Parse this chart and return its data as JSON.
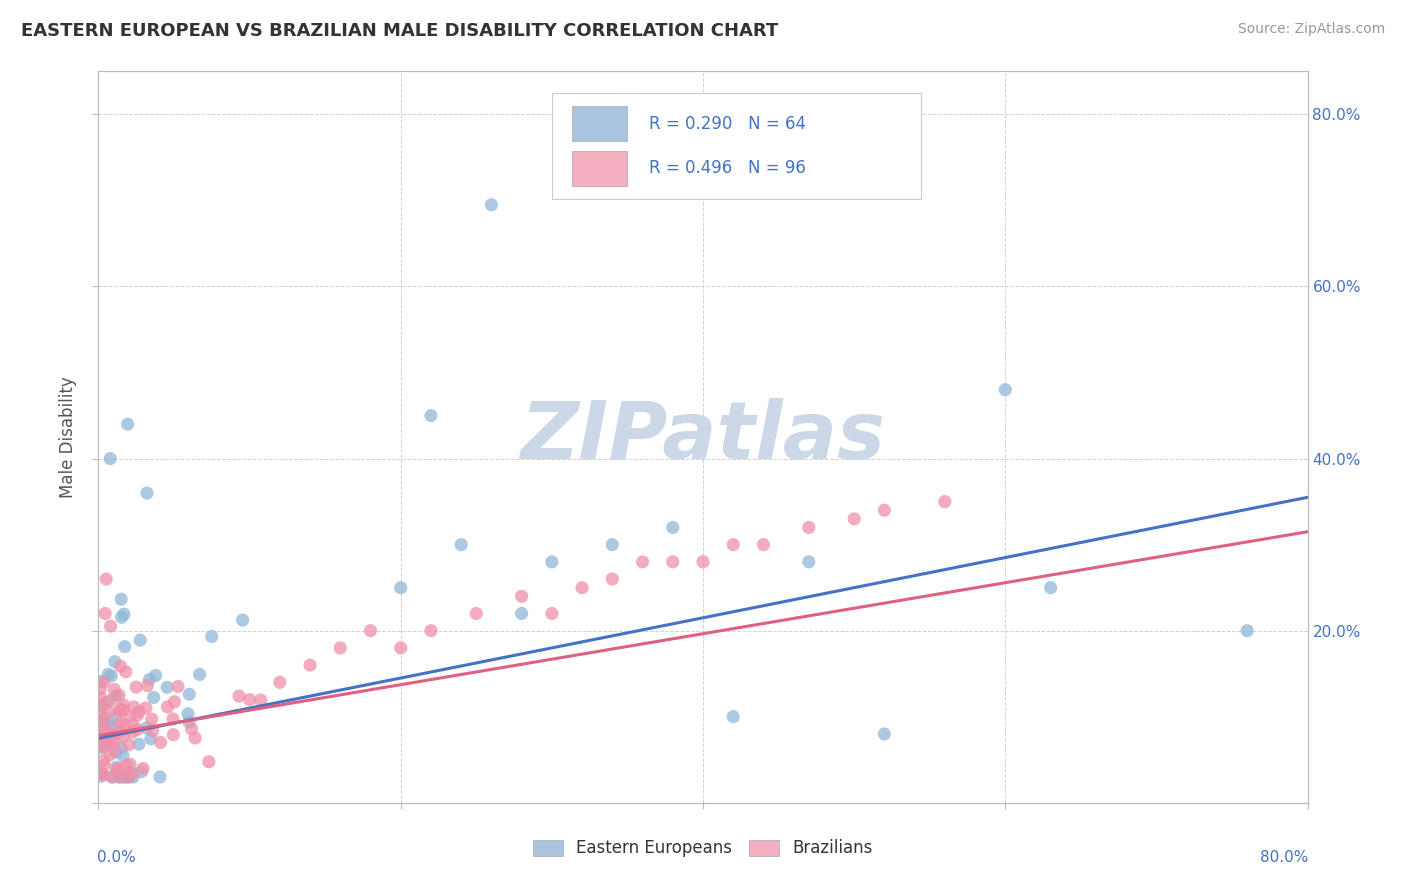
{
  "title": "EASTERN EUROPEAN VS BRAZILIAN MALE DISABILITY CORRELATION CHART",
  "source": "Source: ZipAtlas.com",
  "ylabel": "Male Disability",
  "xlim": [
    0.0,
    0.8
  ],
  "ylim": [
    0.0,
    0.85
  ],
  "eastern_european_color": "#90b8d8",
  "brazilian_color": "#f090a8",
  "ee_line_color": "#4472c4",
  "br_line_color": "#e06080",
  "watermark_color": "#ccd8e8",
  "legend_patch_ee": "#aac4e0",
  "legend_patch_br": "#f4b0c0",
  "R_eastern": 0.29,
  "N_eastern": 64,
  "R_brazilian": 0.496,
  "N_brazilian": 96,
  "ee_line_start_y": 0.075,
  "ee_line_end_y": 0.355,
  "br_line_start_y": 0.078,
  "br_line_end_y": 0.315,
  "title_fontsize": 13,
  "source_fontsize": 10,
  "tick_fontsize": 11,
  "legend_fontsize": 12
}
